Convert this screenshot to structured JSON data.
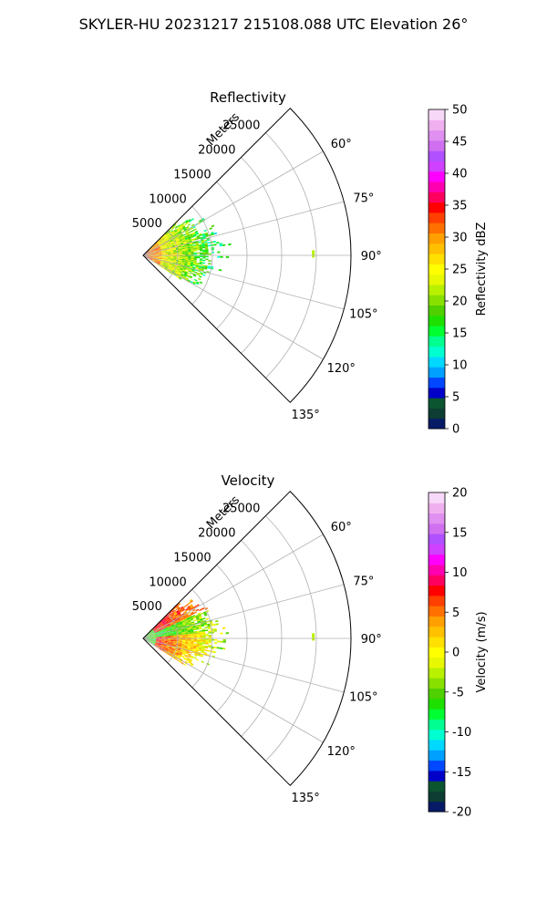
{
  "figure": {
    "title": "SKYLER-HU  20231217  215108.088 UTC Elevation 26°"
  },
  "chart_data": [
    {
      "type": "heatmap",
      "projection": "polar-sector",
      "title": "Reflectivity",
      "range_label": "Meters",
      "range_ticks": [
        5000,
        10000,
        15000,
        20000,
        25000
      ],
      "range_max": 30000,
      "azimuth_ticks_deg": [
        60,
        75,
        90,
        105,
        120,
        135
      ],
      "azimuth_tick_labels": [
        "60°",
        "75°",
        "90°",
        "105°",
        "120°",
        "135°"
      ],
      "azimuth_range_deg": [
        45,
        135
      ],
      "grid": true,
      "colorbar": {
        "label": "Reflectivity dBZ",
        "min": 0,
        "max": 50,
        "ticks": [
          0,
          5,
          10,
          15,
          20,
          25,
          30,
          35,
          40,
          45,
          50
        ],
        "colors": [
          "#061a66",
          "#0d3d33",
          "#0b5530",
          "#0000c8",
          "#0048ff",
          "#00a0ff",
          "#00d8ff",
          "#00ffd0",
          "#00ff90",
          "#00ff30",
          "#1ee000",
          "#50d000",
          "#88e000",
          "#b8f000",
          "#e8f800",
          "#ffff00",
          "#ffe000",
          "#ffc000",
          "#ffa000",
          "#ff7000",
          "#ff4000",
          "#ff0000",
          "#ff0060",
          "#ff00b0",
          "#ff00ff",
          "#d040ff",
          "#b050ff",
          "#d070f0",
          "#e090f0",
          "#f0b0f0",
          "#f8d8f8"
        ]
      },
      "echo_region": {
        "azimuth_deg": [
          45,
          122
        ],
        "range_m": [
          0,
          11000
        ],
        "typical_value_near_radar": 28,
        "typical_value_far_edge": 15,
        "isolated_echo": {
          "azimuth_deg": 90,
          "range_m": 24500,
          "value": 22
        }
      }
    },
    {
      "type": "heatmap",
      "projection": "polar-sector",
      "title": "Velocity",
      "range_label": "Meters",
      "range_ticks": [
        5000,
        10000,
        15000,
        20000,
        25000
      ],
      "range_max": 30000,
      "azimuth_ticks_deg": [
        60,
        75,
        90,
        105,
        120,
        135
      ],
      "azimuth_tick_labels": [
        "60°",
        "75°",
        "90°",
        "105°",
        "120°",
        "135°"
      ],
      "azimuth_range_deg": [
        45,
        135
      ],
      "grid": true,
      "colorbar": {
        "label": "Velocity (m/s)",
        "min": -20,
        "max": 20,
        "ticks": [
          -20,
          -15,
          -10,
          -5,
          0,
          5,
          10,
          15,
          20
        ],
        "colors": [
          "#061a66",
          "#0d3d33",
          "#0b5530",
          "#0000c8",
          "#0048ff",
          "#00a0ff",
          "#00d8ff",
          "#00ffd0",
          "#00ff90",
          "#00ff30",
          "#1ee000",
          "#50d000",
          "#88e000",
          "#b8f000",
          "#e8f800",
          "#ffff00",
          "#ffe000",
          "#ffc000",
          "#ffa000",
          "#ff7000",
          "#ff4000",
          "#ff0000",
          "#ff0060",
          "#ff00b0",
          "#ff00ff",
          "#d040ff",
          "#b050ff",
          "#d070f0",
          "#e090f0",
          "#f0b0f0",
          "#f8d8f8"
        ]
      },
      "echo_region": {
        "azimuth_deg": [
          45,
          122
        ],
        "range_m": [
          0,
          11000
        ],
        "north_part_value": 8,
        "center_value": -8,
        "south_part_value": 9,
        "isolated_echo": {
          "azimuth_deg": 90,
          "range_m": 24500,
          "value": -2
        }
      }
    }
  ]
}
